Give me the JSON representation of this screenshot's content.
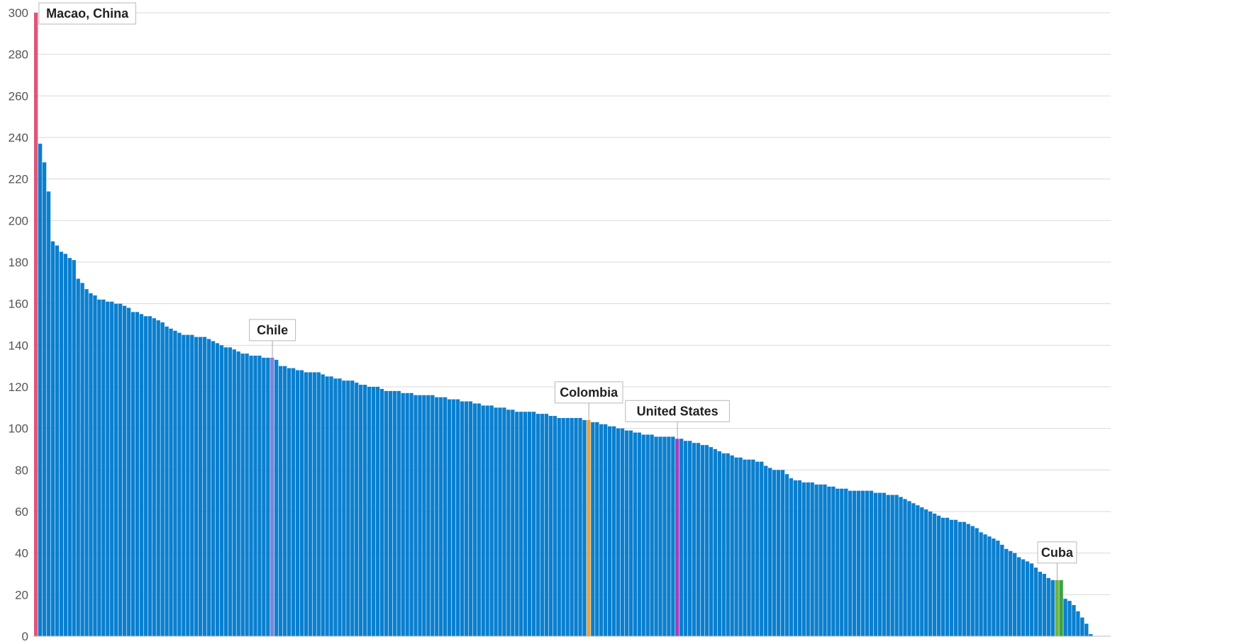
{
  "chart_data": {
    "type": "bar",
    "title": "",
    "xlabel": "",
    "ylabel": "",
    "ylim": [
      0,
      300
    ],
    "yticks": [
      0,
      20,
      40,
      60,
      80,
      100,
      120,
      140,
      160,
      180,
      200,
      220,
      240,
      260,
      280,
      300
    ],
    "grid": true,
    "legend": "none",
    "colors": {
      "default": "#0A7FCF",
      "Macao, China": "#E0557A",
      "Chile": "#7A86D6",
      "Colombia": "#E8A43A",
      "United States": "#A23FBE",
      "Cuba": "#6DB33F",
      "after_cuba": "#39A24A"
    },
    "highlighted": [
      {
        "name": "Macao, China",
        "index": 0
      },
      {
        "name": "Chile",
        "index": 56
      },
      {
        "name": "Colombia",
        "index": 131
      },
      {
        "name": "United States",
        "index": 152
      },
      {
        "name": "Cuba",
        "index": 242
      }
    ],
    "values": [
      300,
      237,
      228,
      214,
      190,
      188,
      185,
      184,
      182,
      181,
      172,
      170,
      167,
      165,
      164,
      162,
      162,
      161,
      161,
      160,
      160,
      159,
      158,
      156,
      156,
      155,
      154,
      154,
      153,
      152,
      151,
      149,
      148,
      147,
      146,
      145,
      145,
      145,
      144,
      144,
      144,
      143,
      142,
      141,
      140,
      139,
      139,
      138,
      137,
      136,
      136,
      135,
      135,
      135,
      134,
      134,
      134,
      133,
      130,
      130,
      129,
      129,
      128,
      128,
      127,
      127,
      127,
      127,
      126,
      125,
      125,
      124,
      124,
      123,
      123,
      123,
      122,
      121,
      121,
      120,
      120,
      120,
      119,
      118,
      118,
      118,
      118,
      117,
      117,
      117,
      116,
      116,
      116,
      116,
      116,
      115,
      115,
      115,
      114,
      114,
      114,
      113,
      113,
      113,
      112,
      112,
      111,
      111,
      111,
      110,
      110,
      110,
      109,
      109,
      108,
      108,
      108,
      108,
      108,
      107,
      107,
      107,
      106,
      106,
      105,
      105,
      105,
      105,
      105,
      105,
      104,
      104,
      103,
      103,
      102,
      102,
      101,
      101,
      100,
      100,
      99,
      99,
      98,
      98,
      97,
      97,
      97,
      96,
      96,
      96,
      96,
      96,
      95,
      95,
      94,
      94,
      93,
      93,
      92,
      92,
      91,
      90,
      89,
      88,
      88,
      87,
      86,
      86,
      85,
      85,
      85,
      84,
      84,
      82,
      81,
      80,
      80,
      80,
      78,
      76,
      75,
      75,
      74,
      74,
      74,
      73,
      73,
      73,
      72,
      72,
      71,
      71,
      71,
      70,
      70,
      70,
      70,
      70,
      70,
      69,
      69,
      69,
      68,
      68,
      68,
      67,
      66,
      65,
      64,
      63,
      62,
      61,
      60,
      59,
      58,
      57,
      57,
      56,
      56,
      55,
      55,
      54,
      53,
      52,
      50,
      49,
      48,
      47,
      46,
      44,
      42,
      41,
      40,
      38,
      37,
      36,
      35,
      33,
      31,
      30,
      28,
      27,
      27,
      27,
      18,
      17,
      15,
      12,
      9,
      6,
      1
    ]
  }
}
